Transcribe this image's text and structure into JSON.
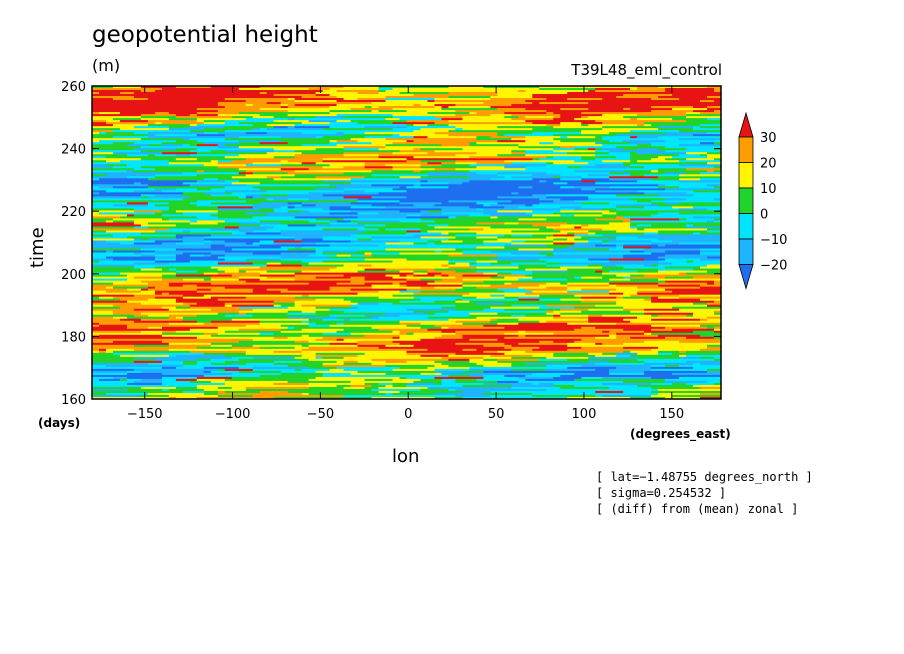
{
  "chart_data": {
    "type": "heatmap",
    "title": "geopotential height",
    "units": "(m)",
    "run_name": "T39L48_eml_control",
    "xlabel": "lon",
    "ylabel": "time",
    "x_unit": "(degrees_east)",
    "y_unit": "(days)",
    "xlim": [
      -180,
      178
    ],
    "ylim": [
      160,
      260
    ],
    "x_ticks": [
      -150,
      -100,
      -50,
      0,
      50,
      100,
      150
    ],
    "y_ticks": [
      160,
      180,
      200,
      220,
      240,
      260
    ],
    "x_tick_labels": [
      "−150",
      "−100",
      "−50",
      "0",
      "50",
      "100",
      "150"
    ],
    "y_tick_labels": [
      "160",
      "180",
      "200",
      "220",
      "240",
      "260"
    ],
    "colorbar": {
      "levels": [
        -20,
        -10,
        0,
        10,
        20,
        30
      ],
      "level_labels": [
        "−20",
        "−10",
        "0",
        "10",
        "20",
        "30"
      ],
      "colors": [
        "#1e6ff0",
        "#1eb4ff",
        "#00e5ff",
        "#22d42a",
        "#fff500",
        "#ff9d00",
        "#e81414"
      ],
      "extend": "both"
    },
    "notes": [
      "[ lat=−1.48755 degrees_north ]",
      "[ sigma=0.254532 ]",
      "[ (diff) from (mean) zonal ]"
    ]
  }
}
